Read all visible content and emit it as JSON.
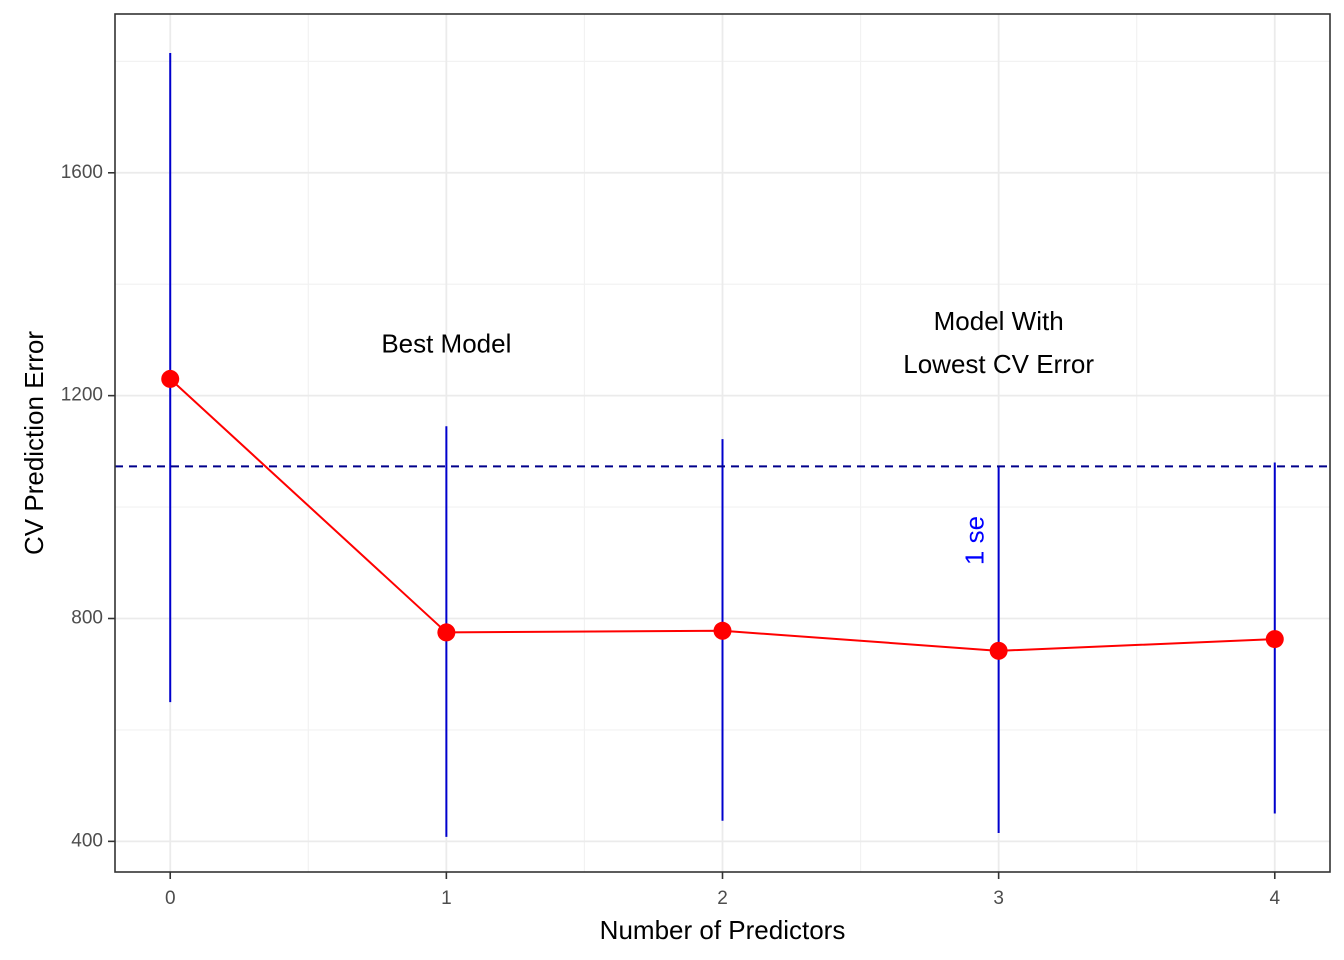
{
  "chart_data": {
    "type": "line",
    "xlabel": "Number of Predictors",
    "ylabel": "CV Prediction Error",
    "xlim": [
      -0.2,
      4.2
    ],
    "ylim": [
      345,
      1885
    ],
    "x_ticks": [
      0,
      1,
      2,
      3,
      4
    ],
    "x_tick_labels": [
      "0",
      "1",
      "2",
      "3",
      "4"
    ],
    "x_minor_ticks": [
      0.5,
      1.5,
      2.5,
      3.5
    ],
    "y_ticks": [
      400,
      800,
      1200,
      1600
    ],
    "y_tick_labels": [
      "400",
      "800",
      "1200",
      "1600"
    ],
    "y_minor_ticks": [
      600,
      1000,
      1400,
      1800
    ],
    "grid": true,
    "series": [
      {
        "x": [
          0,
          1,
          2,
          3,
          4
        ],
        "values": [
          1230,
          775,
          778,
          742,
          763
        ],
        "error_low": [
          650,
          408,
          437,
          415,
          450
        ],
        "error_high": [
          1815,
          1145,
          1122,
          1073,
          1080
        ],
        "line_color": "#ff0000",
        "errorbar_color": "#0000cd"
      }
    ],
    "reference_line": {
      "y": 1073,
      "style": "dashed",
      "color": "#00008b"
    },
    "annotations": [
      {
        "text": "Best Model",
        "x": 1.0,
        "y": 1290
      },
      {
        "text": "Model With",
        "x": 3.0,
        "y": 1330
      },
      {
        "text": "Lowest CV Error",
        "x": 3.0,
        "y": 1253
      },
      {
        "text": "1 se",
        "x": 2.92,
        "y": 940,
        "rotated": true,
        "color": "#0000ff"
      }
    ],
    "panel_border_color": "#333333",
    "grid_color": "#ebebeb"
  }
}
